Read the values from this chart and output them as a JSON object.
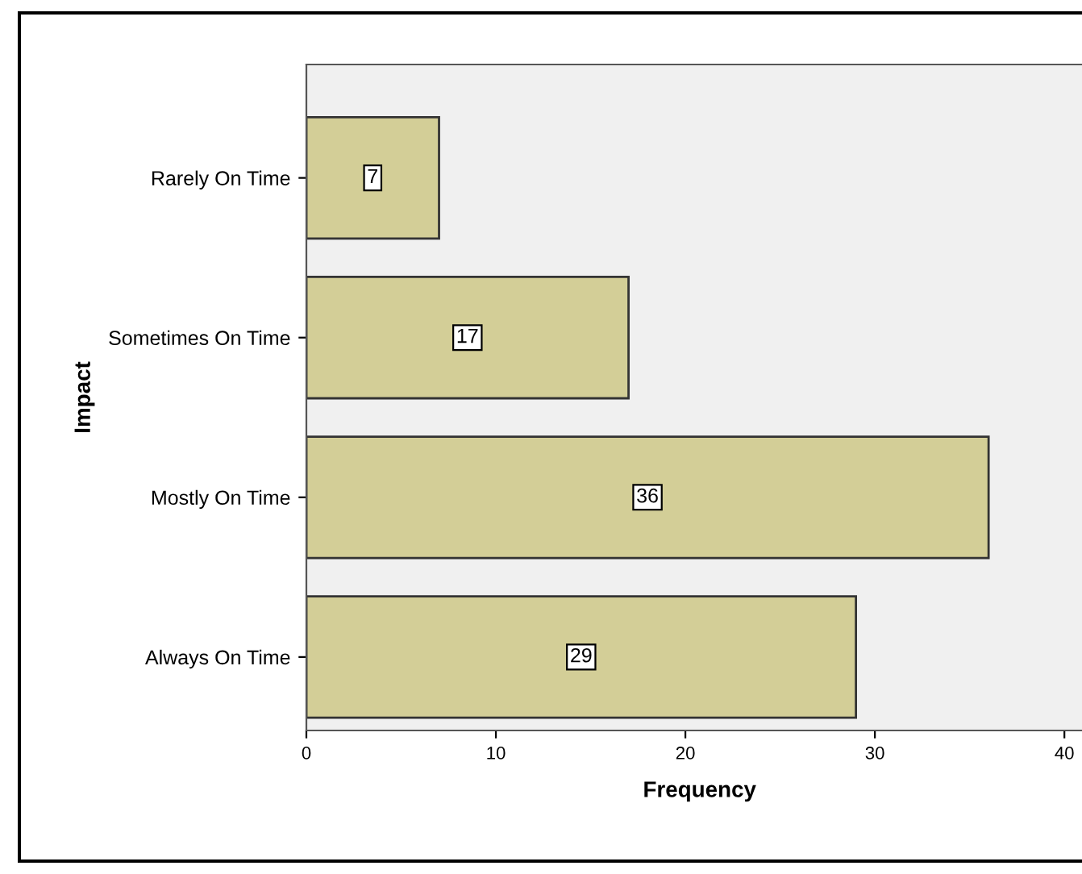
{
  "chart_data": {
    "type": "bar",
    "orientation": "horizontal",
    "xlabel": "Frequency",
    "ylabel": "Impact",
    "categories": [
      "Rarely On Time",
      "Sometimes On Time",
      "Mostly On Time",
      "Always On Time"
    ],
    "values": [
      7,
      17,
      36,
      29
    ],
    "color": "#d3ce97",
    "xlim": [
      0,
      41.5
    ],
    "xticks": [
      0,
      10,
      20,
      30,
      40
    ],
    "data_labels": true,
    "grid": false,
    "legend": false
  }
}
